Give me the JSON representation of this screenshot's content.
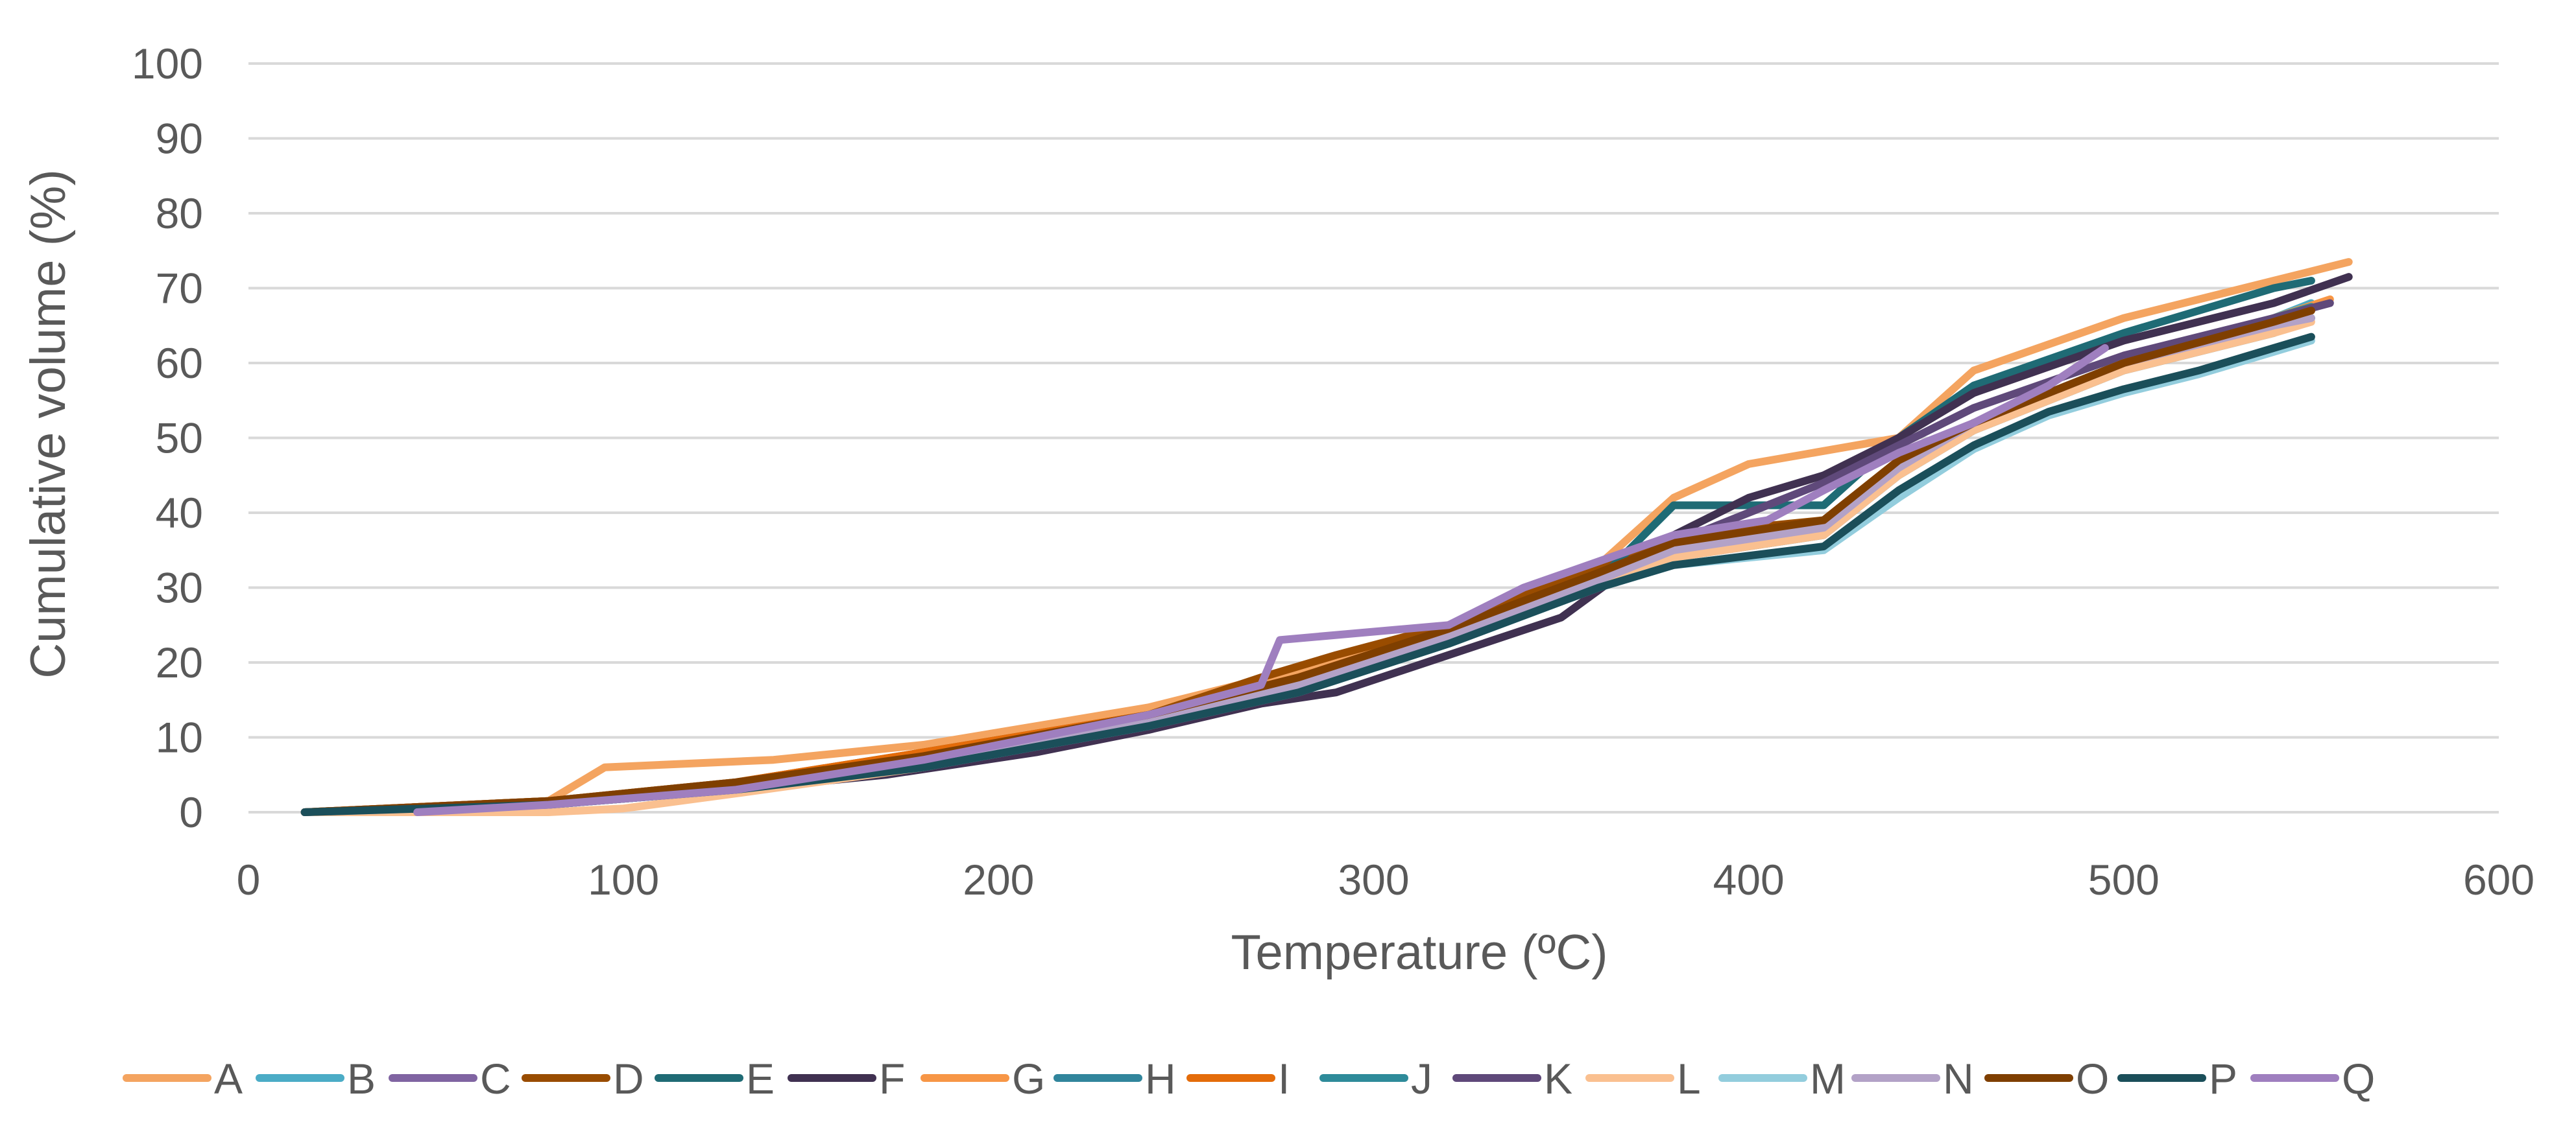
{
  "chart_data": {
    "type": "line",
    "title": "",
    "xlabel": "Temperature (ºC)",
    "ylabel": "Cumulative volume (%)",
    "xlim": [
      0,
      600
    ],
    "ylim": [
      0,
      100
    ],
    "xticks": [
      0,
      100,
      200,
      300,
      400,
      500,
      600
    ],
    "yticks": [
      0,
      10,
      20,
      30,
      40,
      50,
      60,
      70,
      80,
      90,
      100
    ],
    "grid": true,
    "legend_position": "bottom",
    "series": [
      {
        "name": "A",
        "color": "#F4A460",
        "x": [
          15,
          80,
          95,
          140,
          180,
          240,
          280,
          320,
          360,
          380,
          400,
          440,
          460,
          500,
          540,
          560
        ],
        "y": [
          0,
          1.5,
          6,
          7,
          9,
          14,
          19,
          25,
          33,
          42,
          46.5,
          50,
          59,
          66,
          71,
          73.5
        ]
      },
      {
        "name": "B",
        "color": "#4BACC6",
        "x": [
          15,
          80,
          130,
          180,
          240,
          280,
          320,
          360,
          380,
          420,
          440,
          460,
          500,
          540,
          550
        ],
        "y": [
          0,
          1,
          3,
          6,
          12,
          17,
          24,
          31,
          34,
          38,
          46,
          52,
          60,
          66,
          68
        ]
      },
      {
        "name": "C",
        "color": "#8064A2",
        "x": [
          15,
          80,
          130,
          180,
          240,
          280,
          320,
          360,
          380,
          420,
          440,
          460,
          500,
          540,
          550
        ],
        "y": [
          0,
          1,
          3.5,
          7,
          12.5,
          17,
          24,
          32,
          36,
          38,
          46,
          52,
          60,
          66,
          67
        ]
      },
      {
        "name": "D",
        "color": "#994C00",
        "x": [
          15,
          80,
          130,
          180,
          240,
          270,
          290,
          320,
          360,
          380,
          420,
          440,
          460,
          500,
          540,
          550
        ],
        "y": [
          0,
          1.5,
          4,
          8,
          13,
          18,
          21,
          25,
          33,
          37,
          39,
          47,
          52,
          60,
          65,
          67.5
        ]
      },
      {
        "name": "E",
        "color": "#1F6B75",
        "x": [
          15,
          80,
          130,
          180,
          240,
          270,
          290,
          330,
          360,
          380,
          420,
          440,
          460,
          500,
          540,
          550
        ],
        "y": [
          0,
          1,
          3,
          6,
          12,
          16.5,
          18,
          25,
          31,
          41,
          41,
          50,
          57,
          64,
          70,
          71
        ]
      },
      {
        "name": "F",
        "color": "#403151",
        "x": [
          15,
          80,
          130,
          170,
          210,
          240,
          270,
          290,
          320,
          350,
          380,
          400,
          420,
          440,
          460,
          500,
          540,
          560
        ],
        "y": [
          0,
          1,
          3,
          5,
          8,
          11,
          14.5,
          16,
          21,
          26,
          37,
          42,
          45,
          50,
          56,
          63,
          68,
          71.5
        ]
      },
      {
        "name": "G",
        "color": "#F79646",
        "x": [
          15,
          80,
          130,
          180,
          240,
          280,
          320,
          360,
          380,
          420,
          440,
          460,
          500,
          540,
          555
        ],
        "y": [
          0,
          1,
          3.5,
          7,
          12.5,
          17,
          24,
          31,
          35,
          38,
          46,
          52,
          60,
          66,
          68.5
        ]
      },
      {
        "name": "H",
        "color": "#31859C",
        "x": [
          15,
          80,
          130,
          180,
          240,
          280,
          320,
          360,
          380,
          420,
          440,
          460,
          500,
          540,
          550
        ],
        "y": [
          0,
          1,
          3,
          6,
          11.5,
          16.5,
          23,
          30,
          34,
          37,
          45,
          51,
          59,
          64,
          66
        ]
      },
      {
        "name": "I",
        "color": "#E46C0A",
        "x": [
          15,
          80,
          130,
          180,
          240,
          280,
          320,
          360,
          380,
          420,
          440,
          460,
          500,
          540,
          550
        ],
        "y": [
          0,
          1.5,
          4,
          8,
          13,
          18,
          24.5,
          32,
          36,
          39,
          47,
          52,
          60,
          65,
          67
        ]
      },
      {
        "name": "J",
        "color": "#2E8B9A",
        "x": [
          15,
          80,
          130,
          180,
          240,
          280,
          320,
          360,
          380,
          420,
          440,
          460,
          500,
          540,
          550
        ],
        "y": [
          0,
          1,
          3,
          6.5,
          12,
          16.5,
          23.5,
          31,
          35,
          39,
          46,
          52,
          60,
          66,
          67.5
        ]
      },
      {
        "name": "K",
        "color": "#5F497A",
        "x": [
          15,
          80,
          130,
          180,
          240,
          280,
          320,
          360,
          380,
          400,
          420,
          440,
          460,
          500,
          540,
          555
        ],
        "y": [
          0,
          1,
          3.5,
          7,
          12.5,
          17,
          24,
          32,
          36,
          40,
          44,
          49,
          54,
          61,
          66,
          68
        ]
      },
      {
        "name": "L",
        "color": "#FAC090",
        "x": [
          15,
          80,
          100,
          130,
          180,
          240,
          280,
          320,
          360,
          380,
          420,
          440,
          460,
          500,
          540,
          550
        ],
        "y": [
          0,
          0,
          0.5,
          2.5,
          6,
          12,
          17,
          24,
          31,
          34,
          37,
          45,
          51,
          59,
          64,
          65.5
        ]
      },
      {
        "name": "M",
        "color": "#93CDDD",
        "x": [
          15,
          80,
          130,
          180,
          240,
          280,
          320,
          360,
          380,
          420,
          440,
          460,
          480,
          500,
          520,
          540,
          550
        ],
        "y": [
          0,
          1,
          3,
          6,
          11.5,
          16,
          22.5,
          30,
          33,
          35,
          42,
          48.5,
          53,
          56,
          58.5,
          61.5,
          63
        ]
      },
      {
        "name": "N",
        "color": "#B3A2C7",
        "x": [
          15,
          80,
          130,
          180,
          240,
          280,
          320,
          360,
          380,
          420,
          440,
          460,
          500,
          540,
          550
        ],
        "y": [
          0,
          1,
          3,
          6.5,
          12,
          17,
          23.5,
          31,
          35,
          38,
          46,
          52,
          60,
          65,
          66
        ]
      },
      {
        "name": "O",
        "color": "#7F3F00",
        "x": [
          15,
          80,
          130,
          180,
          240,
          280,
          320,
          360,
          380,
          420,
          440,
          460,
          500,
          540,
          550
        ],
        "y": [
          0,
          1.5,
          4,
          7.5,
          13,
          18,
          24.5,
          32,
          36,
          39,
          47,
          52,
          60,
          65.5,
          67
        ]
      },
      {
        "name": "P",
        "color": "#1B4F5A",
        "x": [
          15,
          80,
          130,
          180,
          240,
          280,
          320,
          360,
          380,
          420,
          440,
          460,
          480,
          500,
          520,
          540,
          550
        ],
        "y": [
          0,
          1,
          3,
          6,
          11.5,
          16,
          22.5,
          30,
          33,
          35.5,
          43,
          49,
          53.5,
          56.5,
          59,
          62,
          63.5
        ]
      },
      {
        "name": "Q",
        "color": "#9F7FBF",
        "x": [
          45,
          80,
          130,
          180,
          240,
          270,
          275,
          320,
          340,
          360,
          380,
          405,
          420,
          440,
          460,
          480,
          495
        ],
        "y": [
          0,
          1,
          3,
          7,
          13,
          17,
          23,
          25,
          30,
          33.5,
          37,
          39,
          43,
          48,
          52,
          57,
          62
        ]
      }
    ]
  }
}
